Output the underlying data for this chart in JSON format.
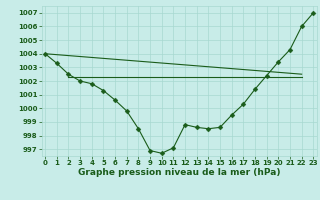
{
  "xlabel": "Graphe pression niveau de la mer (hPa)",
  "background_color": "#c8ece8",
  "grid_color": "#a8d8d0",
  "line_color": "#1a5c1a",
  "x_values": [
    0,
    1,
    2,
    3,
    4,
    5,
    6,
    7,
    8,
    9,
    10,
    11,
    12,
    13,
    14,
    15,
    16,
    17,
    18,
    19,
    20,
    21,
    22,
    23
  ],
  "line1": [
    1004.0,
    1003.3,
    1002.5,
    1002.0,
    1001.8,
    1001.3,
    1000.6,
    999.8,
    998.5,
    996.9,
    996.7,
    997.1,
    998.8,
    998.6,
    998.5,
    998.6,
    999.5,
    1000.3,
    1001.4,
    1002.4,
    1003.4,
    1004.3,
    1006.0,
    1007.0
  ],
  "line2_x": [
    2,
    22
  ],
  "line2_y": [
    1002.3,
    1002.3
  ],
  "line3_x": [
    0,
    22
  ],
  "line3_y": [
    1004.0,
    1002.5
  ],
  "ylim": [
    996.5,
    1007.5
  ],
  "xlim": [
    -0.3,
    23.3
  ],
  "yticks": [
    997,
    998,
    999,
    1000,
    1001,
    1002,
    1003,
    1004,
    1005,
    1006,
    1007
  ],
  "xticks": [
    0,
    1,
    2,
    3,
    4,
    5,
    6,
    7,
    8,
    9,
    10,
    11,
    12,
    13,
    14,
    15,
    16,
    17,
    18,
    19,
    20,
    21,
    22,
    23
  ],
  "tick_fontsize": 5.0,
  "xlabel_fontsize": 6.5,
  "marker_size": 2.5,
  "linewidth": 0.8
}
